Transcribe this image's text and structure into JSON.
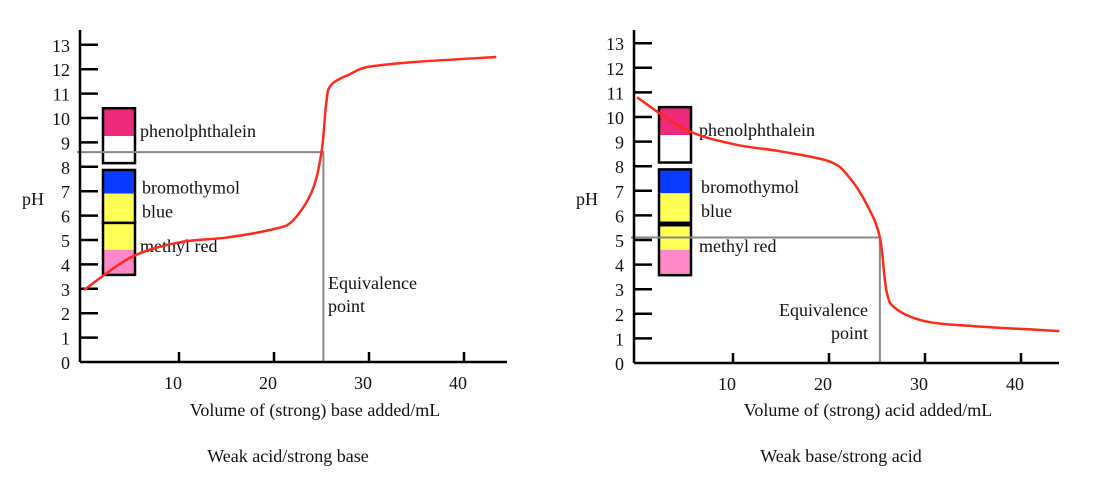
{
  "chart_data": [
    {
      "type": "line",
      "caption": "Weak acid/strong base",
      "xlabel": "Volume of (strong) base added/mL",
      "ylabel": "pH",
      "xlim": [
        0,
        44.5
      ],
      "ylim": [
        0,
        13
      ],
      "xticks": [
        10,
        20,
        30,
        40
      ],
      "yticks": [
        0,
        1,
        2,
        3,
        4,
        5,
        6,
        7,
        8,
        9,
        10,
        11,
        12,
        13
      ],
      "series": [
        {
          "color": "#ff2a1a",
          "x": [
            0,
            5,
            10,
            15,
            20,
            22,
            24,
            25,
            25.5,
            26,
            28,
            30,
            35,
            43.4
          ],
          "y": [
            2.95,
            4.3,
            4.9,
            5.1,
            5.45,
            5.8,
            7.0,
            8.6,
            10.6,
            11.35,
            11.8,
            12.1,
            12.3,
            12.5
          ]
        }
      ],
      "equivalence_point": {
        "label_line1": "Equivalence",
        "label_line2": "point",
        "x": 25.2,
        "pH": 8.6
      },
      "indicators": [
        {
          "name": "phenolphthalein",
          "ph_low": 8.15,
          "ph_split": 9.26,
          "ph_high": 10.4,
          "low_color": "#ffffff",
          "high_color": "#ee2a7b"
        },
        {
          "name_line1": "bromothymol",
          "name_line2": "blue",
          "ph_low": 5.7,
          "ph_split": 6.9,
          "ph_high": 7.87,
          "low_color": "#ffff55",
          "high_color": "#0a3cff"
        },
        {
          "name": "methyl red",
          "ph_low": 3.57,
          "ph_split": 4.6,
          "ph_high": 5.7,
          "low_color": "#ff88c8",
          "high_color": "#ffff55"
        }
      ]
    },
    {
      "type": "line",
      "caption": "Weak base/strong acid",
      "xlabel": "Volume of (strong) acid added/mL",
      "ylabel": "pH",
      "xlim": [
        0,
        44
      ],
      "ylim": [
        0,
        13
      ],
      "xticks": [
        10,
        20,
        30,
        40
      ],
      "yticks": [
        0,
        1,
        2,
        3,
        4,
        5,
        6,
        7,
        8,
        9,
        10,
        11,
        12,
        13
      ],
      "series": [
        {
          "color": "#ff2a1a",
          "x": [
            0,
            5,
            10,
            15,
            20,
            22,
            24,
            25.3,
            26,
            27,
            30,
            35,
            44
          ],
          "y": [
            10.8,
            9.5,
            8.9,
            8.6,
            8.2,
            7.6,
            6.4,
            5.1,
            2.9,
            2.2,
            1.7,
            1.5,
            1.3
          ]
        }
      ],
      "equivalence_point": {
        "label_line1": "Equivalence",
        "label_line2": "point",
        "x": 25.3,
        "pH": 5.1
      },
      "indicators": [
        {
          "name": "phenolphthalein",
          "ph_low": 8.15,
          "ph_split": 9.26,
          "ph_high": 10.4,
          "low_color": "#ffffff",
          "high_color": "#ee2a7b"
        },
        {
          "name_line1": "bromothymol",
          "name_line2": "blue",
          "ph_low": 5.7,
          "ph_split": 6.9,
          "ph_high": 7.87,
          "low_color": "#ffff55",
          "high_color": "#0a3cff"
        },
        {
          "name": "methyl red",
          "ph_low": 3.57,
          "ph_split": 4.6,
          "ph_high": 5.6,
          "low_color": "#ff88c8",
          "high_color": "#ffff55"
        }
      ]
    }
  ]
}
